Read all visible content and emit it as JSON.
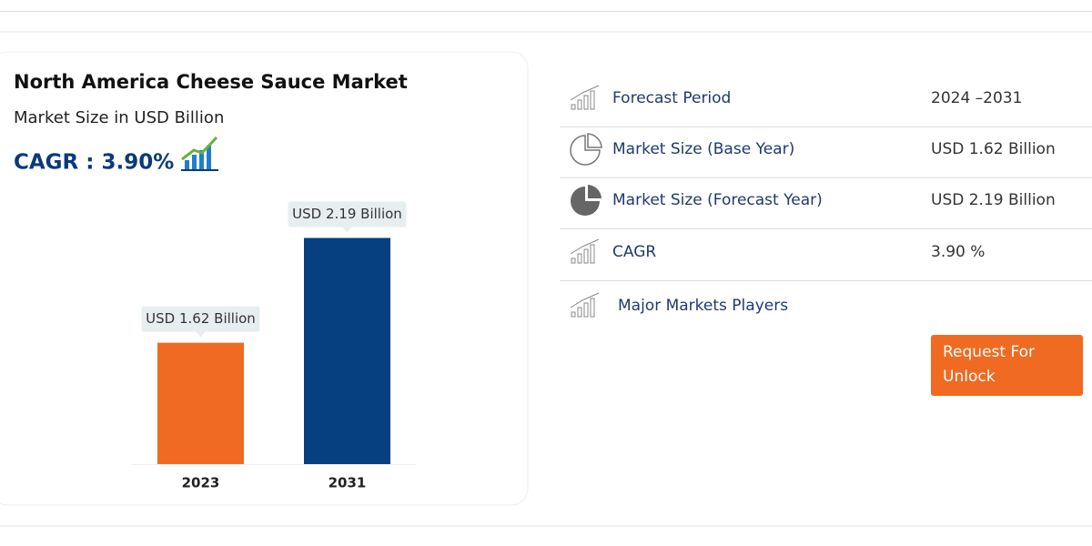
{
  "chart_data": {
    "type": "bar",
    "title": "North America Cheese Sauce Market",
    "subtitle": "Market Size in USD Billion",
    "cagr_label": "CAGR : 3.90%",
    "categories": [
      "2023",
      "2031"
    ],
    "values": [
      1.62,
      2.19
    ],
    "value_labels": [
      "USD 1.62 Billion",
      "USD 2.19 Billion"
    ],
    "colors": [
      "#f06a22",
      "#064080"
    ],
    "ylim": [
      0.96,
      2.42
    ]
  },
  "details": {
    "rows": [
      {
        "label": "Forecast Period",
        "value": "2024 –2031"
      },
      {
        "label": "Market Size (Base Year)",
        "value": "USD 1.62 Billion"
      },
      {
        "label": "Market Size (Forecast Year)",
        "value": "USD 2.19 Billion"
      },
      {
        "label": "CAGR",
        "value": "3.90 %"
      },
      {
        "label": "Major Markets Players"
      }
    ],
    "button": "Request For Unlock"
  }
}
